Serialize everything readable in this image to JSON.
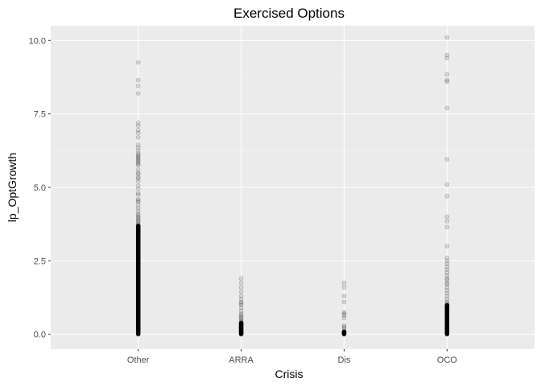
{
  "chart_data": {
    "type": "scatter",
    "title": "Exercised Options",
    "xlabel": "Crisis",
    "ylabel": "lp_OptGrowth",
    "categories": [
      "Other",
      "ARRA",
      "Dis",
      "OCO"
    ],
    "y_ticks": [
      0.0,
      2.5,
      5.0,
      7.5,
      10.0
    ],
    "y_tick_labels": [
      "0.0",
      "2.5",
      "5.0",
      "7.5",
      "10.0"
    ],
    "ylim": [
      -0.5,
      10.5
    ],
    "grid": true,
    "point_color": "#000000",
    "point_alpha": 0.12,
    "series": [
      {
        "name": "Other",
        "dense_range": [
          0.0,
          3.7
        ],
        "values": [
          9.25,
          8.65,
          8.45,
          8.2,
          7.2,
          7.1,
          6.95,
          6.85,
          6.7,
          6.45,
          6.35,
          6.25,
          6.15,
          6.1,
          6.05,
          6.0,
          5.95,
          5.9,
          5.85,
          5.8,
          5.75,
          5.6,
          5.5,
          5.45,
          5.35,
          5.3,
          5.2,
          5.05,
          4.95,
          4.8,
          4.75,
          4.6,
          4.55,
          4.5,
          4.4,
          4.3,
          4.2,
          4.1,
          4.05,
          4.0,
          3.95,
          3.9,
          3.85,
          3.8,
          3.75
        ]
      },
      {
        "name": "ARRA",
        "dense_range": [
          0.0,
          0.4
        ],
        "values": [
          1.9,
          1.75,
          1.6,
          1.45,
          1.3,
          1.2,
          1.1,
          1.05,
          1.0,
          0.9,
          0.8,
          0.7,
          0.65,
          0.6,
          0.55,
          0.5,
          0.45
        ]
      },
      {
        "name": "Dis",
        "dense_range": [
          0.0,
          0.1
        ],
        "values": [
          1.75,
          1.6,
          1.3,
          1.1,
          0.75,
          0.7,
          0.65,
          0.55,
          0.3,
          0.25,
          0.2
        ]
      },
      {
        "name": "OCO",
        "dense_range": [
          0.0,
          1.0
        ],
        "values": [
          10.1,
          9.5,
          9.4,
          8.85,
          8.65,
          8.6,
          7.7,
          5.95,
          5.1,
          4.7,
          4.0,
          3.85,
          3.65,
          3.0,
          2.6,
          2.5,
          2.4,
          2.3,
          2.2,
          2.1,
          2.0,
          1.9,
          1.85,
          1.75,
          1.7,
          1.6,
          1.5,
          1.4,
          1.3,
          1.2,
          1.1,
          1.05
        ]
      }
    ]
  }
}
